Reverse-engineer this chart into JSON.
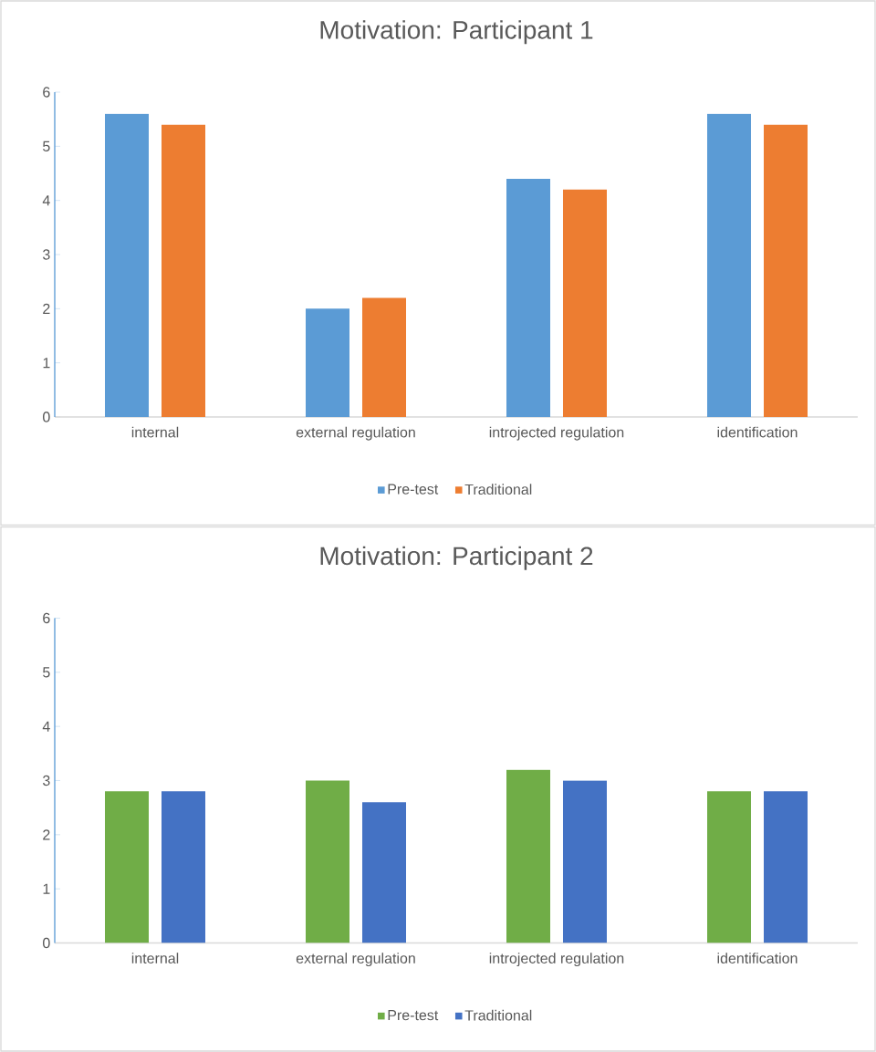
{
  "chart_data": [
    {
      "type": "bar",
      "title": "Motivation: Participant 1",
      "categories": [
        "internal",
        "external regulation",
        "introjected regulation",
        "identification"
      ],
      "ylim": [
        0,
        6
      ],
      "yticks": [
        0,
        1,
        2,
        3,
        4,
        5,
        6
      ],
      "legend": "bottom",
      "series": [
        {
          "name": "Pre-test",
          "color": "#5b9bd5",
          "values": [
            5.6,
            2.0,
            4.4,
            5.6
          ]
        },
        {
          "name": "Traditional",
          "color": "#ed7d31",
          "values": [
            5.4,
            2.2,
            4.2,
            5.4
          ]
        }
      ]
    },
    {
      "type": "bar",
      "title": "Motivation: Participant 2",
      "categories": [
        "internal",
        "external regulation",
        "introjected regulation",
        "identification"
      ],
      "ylim": [
        0,
        6
      ],
      "yticks": [
        0,
        1,
        2,
        3,
        4,
        5,
        6
      ],
      "legend": "bottom",
      "series": [
        {
          "name": "Pre-test",
          "color": "#70ad47",
          "values": [
            2.8,
            3.0,
            3.2,
            2.8
          ]
        },
        {
          "name": "Traditional",
          "color": "#4472c4",
          "values": [
            2.8,
            2.6,
            3.0,
            2.8
          ]
        }
      ]
    }
  ]
}
